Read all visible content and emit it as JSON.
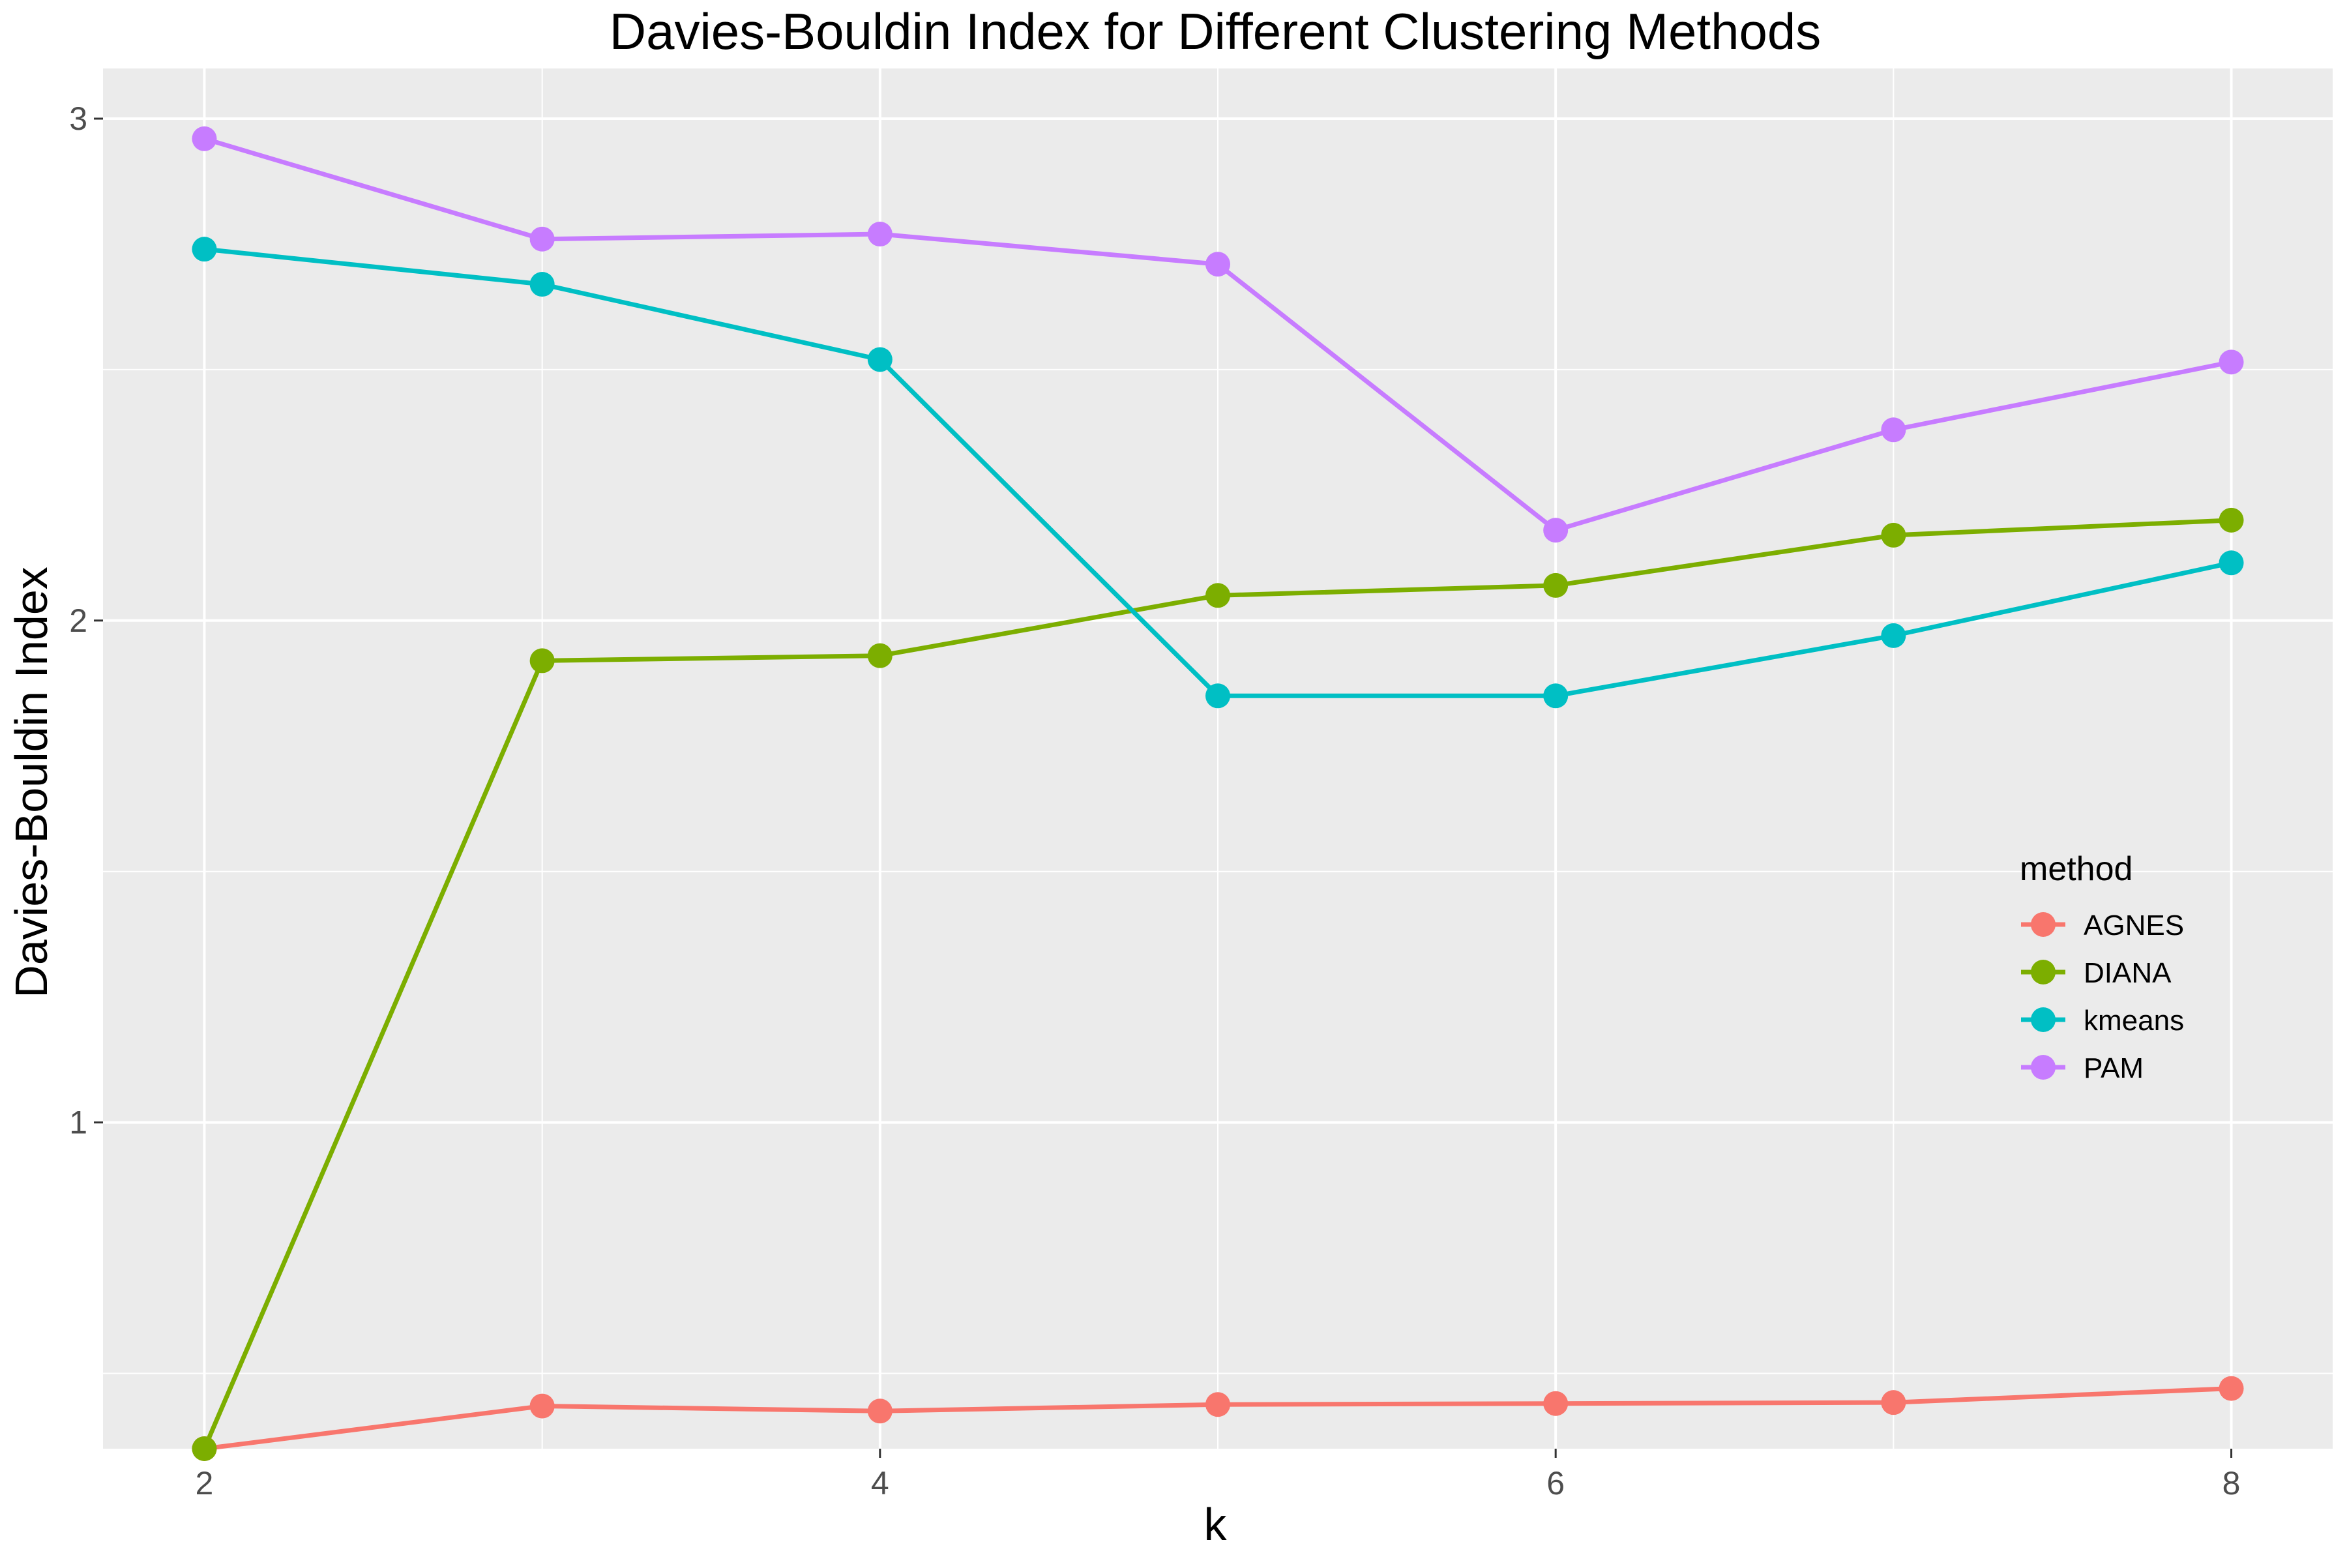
{
  "chart_data": {
    "type": "line",
    "title": "Davies-Bouldin Index for Different Clustering Methods",
    "xlabel": "k",
    "ylabel": "Davies-Bouldin Index",
    "xlim": [
      1.7,
      8.3
    ],
    "ylim": [
      0.35,
      3.1
    ],
    "x_ticks": [
      2,
      4,
      6,
      8
    ],
    "x_minor_ticks": [
      3,
      5,
      7
    ],
    "y_ticks": [
      1,
      2,
      3
    ],
    "y_minor_ticks": [
      0.5,
      1.5,
      2.5
    ],
    "grid": true,
    "background": "#ebebeb",
    "legend": {
      "title": "method",
      "position": "right"
    },
    "x": [
      2,
      3,
      4,
      5,
      6,
      7,
      8
    ],
    "series": [
      {
        "name": "AGNES",
        "color": "#F8766D",
        "values": [
          0.35,
          0.435,
          0.425,
          0.438,
          0.44,
          0.442,
          0.47
        ]
      },
      {
        "name": "DIANA",
        "color": "#7CAE00",
        "values": [
          0.35,
          1.92,
          1.93,
          2.05,
          2.07,
          2.17,
          2.2
        ]
      },
      {
        "name": "kmeans",
        "color": "#00BFC4",
        "values": [
          2.74,
          2.67,
          2.52,
          1.85,
          1.85,
          1.97,
          2.115
        ]
      },
      {
        "name": "PAM",
        "color": "#C77CFF",
        "values": [
          2.96,
          2.76,
          2.77,
          2.71,
          2.18,
          2.38,
          2.515
        ]
      }
    ]
  }
}
